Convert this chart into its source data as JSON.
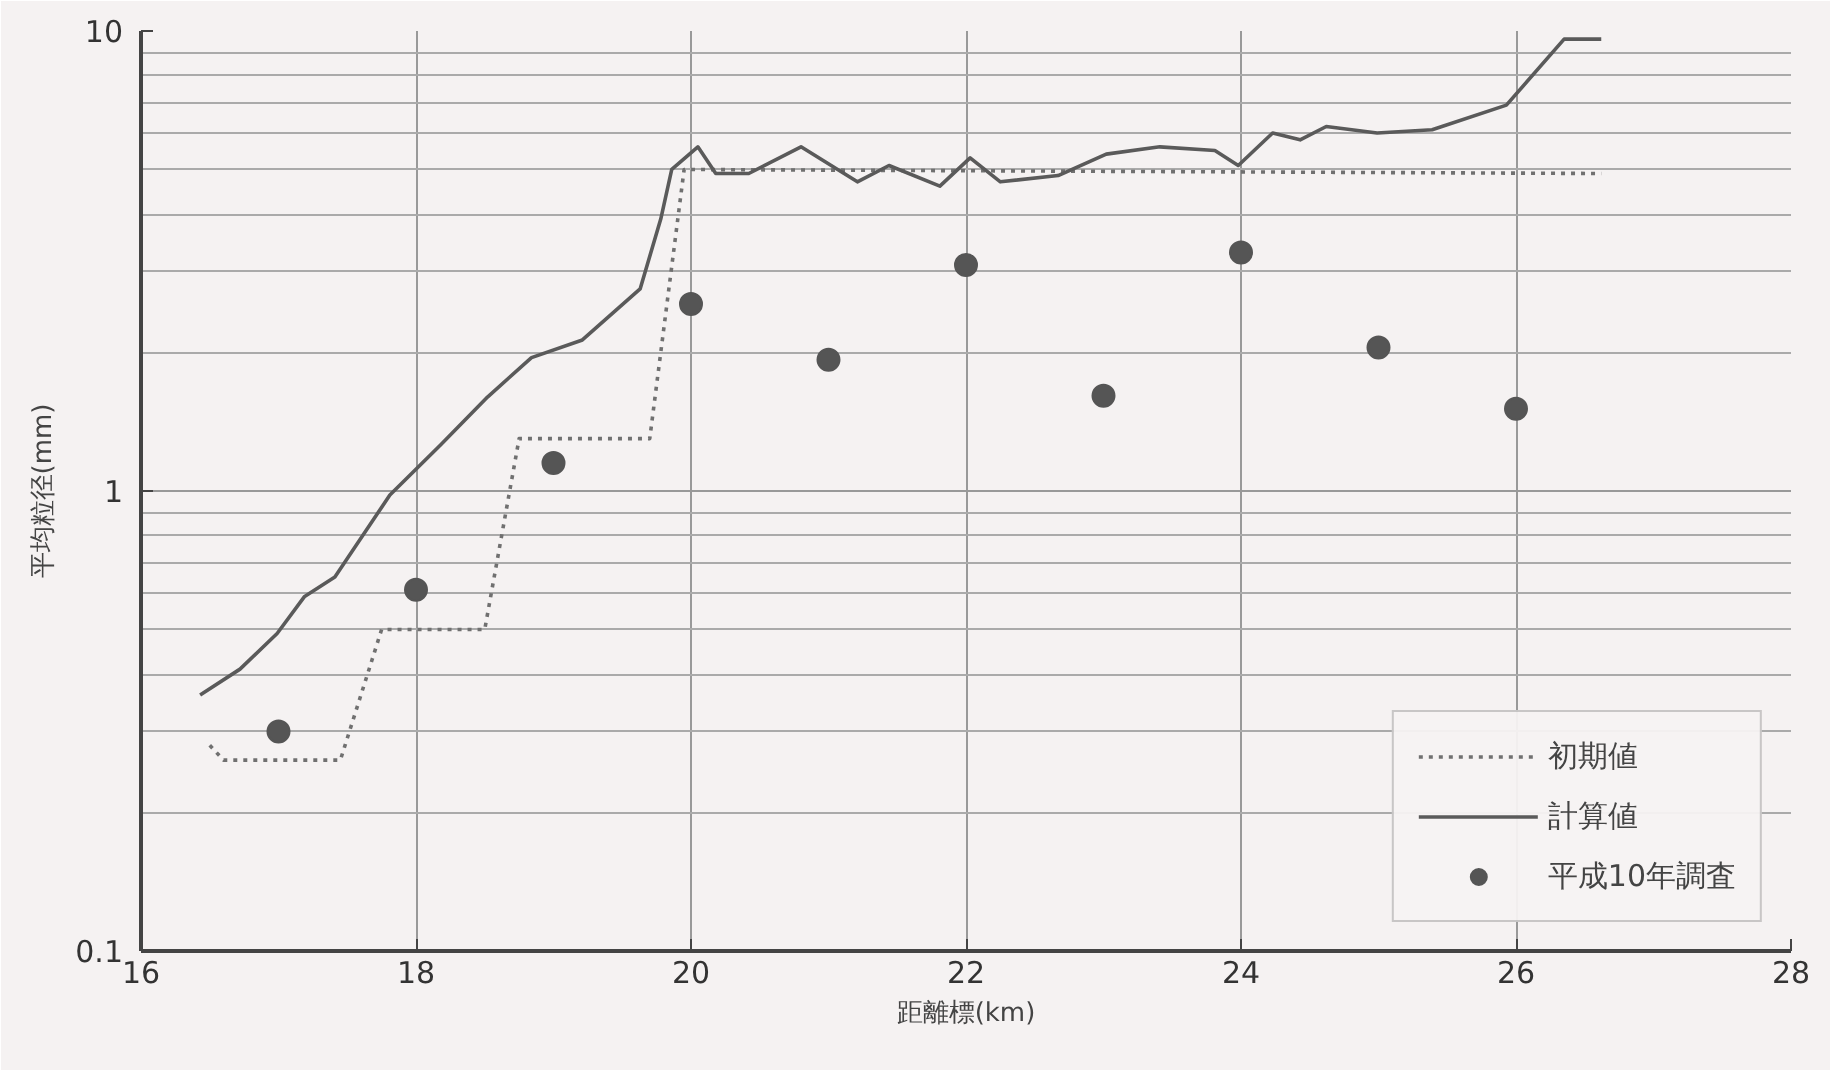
{
  "chart_data": {
    "type": "line",
    "xlabel": "距離標(km)",
    "ylabel": "平均粒径(mm)",
    "log": "y",
    "xlim": [
      16,
      28
    ],
    "xticks": [
      16,
      18,
      20,
      22,
      24,
      26,
      28
    ],
    "ylim": [
      0.1,
      10
    ],
    "yticks": [
      0.1,
      1,
      10
    ],
    "grid": true,
    "legend": "bottom right",
    "series": [
      {
        "name": "初期値",
        "line_style": "dotted",
        "color": "#707070",
        "x": [
          16.5,
          16.6,
          17.45,
          17.75,
          18.5,
          18.75,
          19.7,
          19.95,
          26.62
        ],
        "values": [
          0.28,
          0.26,
          0.26,
          0.5,
          0.5,
          1.3,
          1.3,
          5.0,
          4.9
        ]
      },
      {
        "name": "計算値",
        "line_style": "solid",
        "color": "#5a5a5a",
        "x": [
          16.43,
          16.72,
          16.99,
          17.19,
          17.41,
          17.81,
          18.18,
          18.52,
          18.84,
          19.21,
          19.63,
          19.78,
          19.86,
          20.05,
          20.18,
          20.42,
          20.8,
          21.21,
          21.44,
          21.81,
          22.03,
          22.25,
          22.67,
          23.02,
          23.41,
          23.81,
          23.98,
          24.23,
          24.43,
          24.62,
          24.99,
          25.39,
          25.93,
          26.35,
          26.62
        ],
        "values": [
          0.36,
          0.41,
          0.49,
          0.59,
          0.65,
          0.98,
          1.26,
          1.6,
          1.95,
          2.13,
          2.75,
          3.9,
          5.0,
          5.6,
          4.9,
          4.9,
          5.6,
          4.7,
          5.1,
          4.6,
          5.3,
          4.7,
          4.85,
          5.4,
          5.6,
          5.5,
          5.1,
          6.0,
          5.8,
          6.2,
          6.0,
          6.1,
          6.9,
          9.6,
          9.6
        ]
      },
      {
        "name": "平成10年調査",
        "type": "scatter",
        "marker": "circle",
        "color": "#555555",
        "x": [
          17,
          18,
          19,
          20,
          21,
          22,
          23,
          24,
          25,
          26
        ],
        "values": [
          0.3,
          0.61,
          1.15,
          2.55,
          1.93,
          3.1,
          1.61,
          3.3,
          2.05,
          1.51
        ]
      }
    ]
  }
}
